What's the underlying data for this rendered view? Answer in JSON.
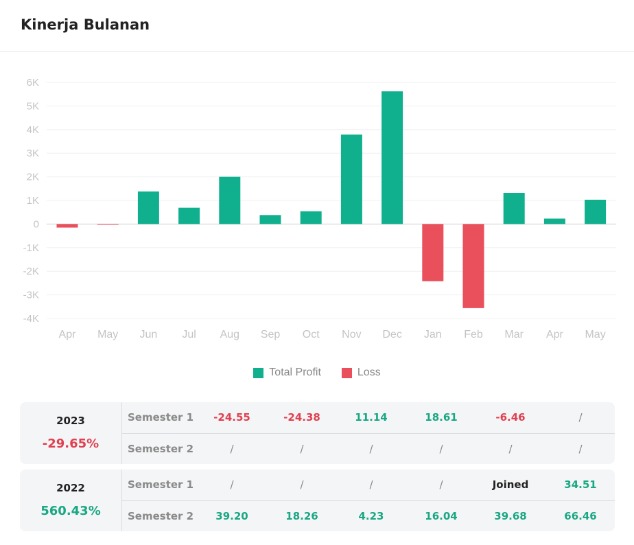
{
  "page": {
    "title": "Kinerja Bulanan"
  },
  "colors": {
    "profit": "#10b08f",
    "loss": "#ea4f5c",
    "pos_text": "#19a784",
    "neg_text": "#e0404f"
  },
  "chart_data": {
    "type": "bar",
    "categories": [
      "Apr",
      "May",
      "Jun",
      "Jul",
      "Aug",
      "Sep",
      "Oct",
      "Nov",
      "Dec",
      "Jan",
      "Feb",
      "Mar",
      "Apr",
      "May"
    ],
    "series": [
      {
        "name": "Total Profit",
        "values": [
          -150,
          -20,
          1380,
          690,
          2000,
          380,
          540,
          3790,
          5620,
          -2420,
          -3560,
          1320,
          230,
          1030
        ]
      }
    ],
    "legend": [
      "Total Profit",
      "Loss"
    ],
    "ylim": [
      -4000,
      6000
    ],
    "yticks": [
      6000,
      5000,
      4000,
      3000,
      2000,
      1000,
      0,
      -1000,
      -2000,
      -3000,
      -4000
    ],
    "ytick_labels": [
      "6K",
      "5K",
      "4K",
      "3K",
      "2K",
      "1K",
      "0",
      "-1K",
      "-2K",
      "-3K",
      "-4K"
    ],
    "grid": true,
    "legend_position": "bottom"
  },
  "performance": [
    {
      "year": "2023",
      "total": "-29.65%",
      "total_sign": "neg",
      "rows": [
        {
          "label": "Semester 1",
          "cells": [
            {
              "v": "-24.55",
              "s": "neg"
            },
            {
              "v": "-24.38",
              "s": "neg"
            },
            {
              "v": "11.14",
              "s": "pos"
            },
            {
              "v": "18.61",
              "s": "pos"
            },
            {
              "v": "-6.46",
              "s": "neg"
            },
            {
              "v": "/",
              "s": "neutral"
            }
          ]
        },
        {
          "label": "Semester 2",
          "cells": [
            {
              "v": "/",
              "s": "neutral"
            },
            {
              "v": "/",
              "s": "neutral"
            },
            {
              "v": "/",
              "s": "neutral"
            },
            {
              "v": "/",
              "s": "neutral"
            },
            {
              "v": "/",
              "s": "neutral"
            },
            {
              "v": "/",
              "s": "neutral"
            }
          ]
        }
      ]
    },
    {
      "year": "2022",
      "total": "560.43%",
      "total_sign": "pos",
      "rows": [
        {
          "label": "Semester 1",
          "cells": [
            {
              "v": "/",
              "s": "neutral"
            },
            {
              "v": "/",
              "s": "neutral"
            },
            {
              "v": "/",
              "s": "neutral"
            },
            {
              "v": "/",
              "s": "neutral"
            },
            {
              "v": "Joined",
              "s": "dark"
            },
            {
              "v": "34.51",
              "s": "pos"
            }
          ]
        },
        {
          "label": "Semester 2",
          "cells": [
            {
              "v": "39.20",
              "s": "pos"
            },
            {
              "v": "18.26",
              "s": "pos"
            },
            {
              "v": "4.23",
              "s": "pos"
            },
            {
              "v": "16.04",
              "s": "pos"
            },
            {
              "v": "39.68",
              "s": "pos"
            },
            {
              "v": "66.46",
              "s": "pos"
            }
          ]
        }
      ]
    }
  ]
}
